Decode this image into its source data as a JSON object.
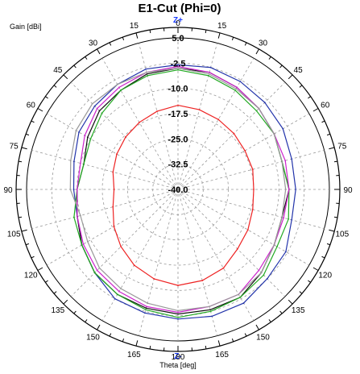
{
  "chart_data": {
    "type": "polar-line",
    "title": "E1-Cut (Phi=0)",
    "radial_label": "Gain [dBi]",
    "angular_label": "Theta [deg]",
    "top_marker": "Z+",
    "bottom_marker": "Z-",
    "radial_range": [
      -40,
      5
    ],
    "radial_ticks": [
      "5.0",
      "-2.5",
      "-10.0",
      "-17.5",
      "-25.0",
      "-32.5",
      "-40.0"
    ],
    "radial_tick_values": [
      5,
      -2.5,
      -10,
      -17.5,
      -25,
      -32.5,
      -40
    ],
    "angle_ticks": [
      "0",
      "15",
      "30",
      "45",
      "60",
      "75",
      "90",
      "105",
      "120",
      "135",
      "150",
      "165",
      "180",
      "165",
      "150",
      "135",
      "120",
      "105",
      "90",
      "75",
      "60",
      "45",
      "30",
      "15"
    ],
    "angle_tick_values": [
      0,
      15,
      30,
      45,
      60,
      75,
      90,
      105,
      120,
      135,
      150,
      165,
      180,
      195,
      210,
      225,
      240,
      255,
      270,
      285,
      300,
      315,
      330,
      345
    ],
    "grid": true,
    "series": [
      {
        "color": "#2233aa",
        "theta": [
          0,
          15,
          30,
          45,
          60,
          75,
          90,
          105,
          120,
          135,
          150,
          165,
          180,
          195,
          210,
          225,
          240,
          255,
          270,
          285,
          300,
          315,
          330,
          345
        ],
        "gain": [
          -3,
          -2.5,
          -3,
          -3.5,
          -4,
          -5,
          -5,
          -5,
          -3,
          -2.5,
          -1,
          -1,
          -1.5,
          -2,
          -2.5,
          -5,
          -7,
          -9,
          -9,
          -8,
          -6,
          -5,
          -4,
          -3
        ]
      },
      {
        "color": "#111111",
        "theta": [
          0,
          15,
          30,
          45,
          60,
          75,
          90,
          105,
          120,
          135,
          150,
          165,
          180,
          195,
          210,
          225,
          240,
          255,
          270,
          285,
          300,
          315,
          330,
          345
        ],
        "gain": [
          -4,
          -4,
          -5,
          -6,
          -7,
          -8,
          -7,
          -8,
          -7,
          -5,
          -3,
          -3,
          -3,
          -3.5,
          -4,
          -5,
          -7,
          -9,
          -10,
          -11,
          -9,
          -7,
          -6,
          -4.5
        ]
      },
      {
        "color": "#22aa22",
        "theta": [
          0,
          15,
          30,
          45,
          60,
          75,
          90,
          105,
          120,
          135,
          150,
          165,
          180,
          195,
          210,
          225,
          240,
          255,
          270,
          285,
          300,
          315,
          330,
          345
        ],
        "gain": [
          -4.5,
          -5,
          -6,
          -7,
          -7,
          -8,
          -7,
          -6,
          -6,
          -4,
          -3,
          -2.5,
          -2,
          -3,
          -4,
          -5,
          -7,
          -8,
          -10,
          -11,
          -10,
          -8,
          -6,
          -5
        ]
      },
      {
        "color": "#cc22cc",
        "theta": [
          0,
          15,
          30,
          45,
          60,
          75,
          90,
          105,
          120,
          135,
          150,
          165,
          180,
          195,
          210,
          225,
          240,
          255,
          270,
          285,
          300,
          315,
          330,
          345
        ],
        "gain": [
          -3.5,
          -4,
          -5,
          -6,
          -7,
          -7,
          -7,
          -7.5,
          -7,
          -6,
          -4,
          -4,
          -3.5,
          -4,
          -5,
          -6,
          -7.5,
          -9,
          -10,
          -10,
          -8,
          -6,
          -5,
          -4
        ]
      },
      {
        "color": "#999999",
        "theta": [
          0,
          15,
          30,
          45,
          60,
          75,
          90,
          105,
          120,
          135,
          150,
          165,
          180,
          195,
          210,
          225,
          240,
          255,
          270,
          285,
          300,
          315,
          330,
          345
        ],
        "gain": [
          -4,
          -4.5,
          -5.5,
          -6,
          -7,
          -8,
          -8,
          -8,
          -7,
          -5,
          -4,
          -4,
          -4,
          -5,
          -6,
          -7,
          -9,
          -10,
          -8,
          -7,
          -5,
          -4,
          -4,
          -4
        ]
      },
      {
        "color": "#ee2222",
        "theta": [
          0,
          15,
          30,
          45,
          60,
          75,
          90,
          105,
          120,
          135,
          150,
          165,
          180,
          195,
          210,
          225,
          240,
          255,
          270,
          285,
          300,
          315,
          330,
          345
        ],
        "gain": [
          -15,
          -15.5,
          -16,
          -16.5,
          -17,
          -17,
          -17.5,
          -17,
          -16,
          -15,
          -13,
          -12,
          -11.5,
          -12.5,
          -14,
          -16,
          -18,
          -20,
          -21,
          -20,
          -19,
          -18,
          -17,
          -16
        ]
      }
    ]
  }
}
